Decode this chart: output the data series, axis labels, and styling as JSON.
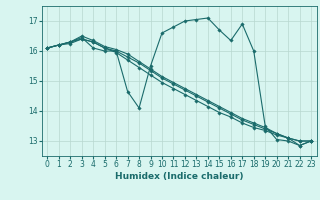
{
  "xlabel": "Humidex (Indice chaleur)",
  "bg_color": "#d8f5f0",
  "grid_color": "#b8d8d0",
  "line_color": "#1a6b6b",
  "xlim": [
    -0.5,
    23.5
  ],
  "ylim": [
    12.5,
    17.5
  ],
  "yticks": [
    13,
    14,
    15,
    16,
    17
  ],
  "xticks": [
    0,
    1,
    2,
    3,
    4,
    5,
    6,
    7,
    8,
    9,
    10,
    11,
    12,
    13,
    14,
    15,
    16,
    17,
    18,
    19,
    20,
    21,
    22,
    23
  ],
  "series": [
    {
      "x": [
        0,
        1,
        2,
        3,
        4,
        5,
        6,
        7,
        8,
        9,
        10,
        11,
        12,
        13,
        14,
        15,
        16,
        17,
        18,
        19,
        20,
        21,
        22,
        23
      ],
      "y": [
        16.1,
        16.2,
        16.3,
        16.45,
        16.1,
        16.0,
        16.0,
        14.65,
        14.1,
        15.5,
        16.6,
        16.8,
        17.0,
        17.05,
        17.1,
        16.7,
        16.35,
        16.9,
        16.0,
        13.5,
        13.05,
        13.0,
        12.85,
        13.0
      ]
    },
    {
      "x": [
        0,
        1,
        2,
        3,
        4,
        5,
        6,
        7,
        8,
        9,
        10,
        11,
        12,
        13,
        14,
        15,
        16,
        17,
        18,
        19,
        20,
        21,
        22,
        23
      ],
      "y": [
        16.1,
        16.2,
        16.25,
        16.4,
        16.3,
        16.1,
        15.95,
        15.7,
        15.45,
        15.2,
        14.95,
        14.75,
        14.55,
        14.35,
        14.15,
        13.95,
        13.8,
        13.6,
        13.45,
        13.35,
        13.2,
        13.1,
        13.0,
        13.0
      ]
    },
    {
      "x": [
        0,
        1,
        2,
        3,
        4,
        5,
        6,
        7,
        8,
        9,
        10,
        11,
        12,
        13,
        14,
        15,
        16,
        17,
        18,
        19,
        20,
        21,
        22,
        23
      ],
      "y": [
        16.1,
        16.2,
        16.3,
        16.4,
        16.3,
        16.1,
        16.0,
        15.8,
        15.6,
        15.35,
        15.1,
        14.9,
        14.7,
        14.5,
        14.3,
        14.1,
        13.9,
        13.7,
        13.55,
        13.4,
        13.25,
        13.1,
        13.0,
        13.0
      ]
    },
    {
      "x": [
        0,
        1,
        2,
        3,
        4,
        5,
        6,
        7,
        8,
        9,
        10,
        11,
        12,
        13,
        14,
        15,
        16,
        17,
        18,
        19,
        20,
        21,
        22,
        23
      ],
      "y": [
        16.1,
        16.2,
        16.3,
        16.5,
        16.35,
        16.15,
        16.05,
        15.9,
        15.65,
        15.4,
        15.15,
        14.95,
        14.75,
        14.55,
        14.35,
        14.15,
        13.95,
        13.75,
        13.6,
        13.45,
        13.25,
        13.1,
        12.85,
        13.0
      ]
    }
  ]
}
